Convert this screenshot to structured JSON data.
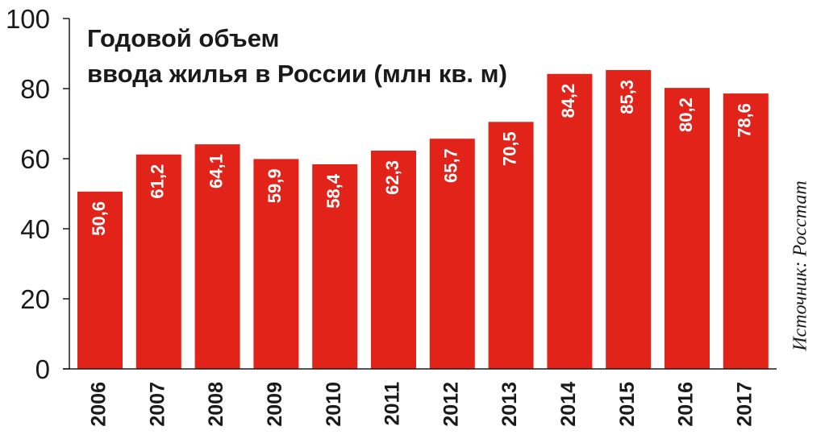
{
  "chart_data": {
    "type": "bar",
    "title": [
      "Годовой объем",
      "ввода жилья в России (млн кв. м)"
    ],
    "categories": [
      "2006",
      "2007",
      "2008",
      "2009",
      "2010",
      "2011",
      "2012",
      "2013",
      "2014",
      "2015",
      "2016",
      "2017"
    ],
    "values": [
      50.6,
      61.2,
      64.1,
      59.9,
      58.4,
      62.3,
      65.7,
      70.5,
      84.2,
      85.3,
      80.2,
      78.6
    ],
    "value_labels": [
      "50,6",
      "61,2",
      "64,1",
      "59,9",
      "58,4",
      "62,3",
      "65,7",
      "70,5",
      "84,2",
      "85,3",
      "80,2",
      "78,6"
    ],
    "yticks": [
      "0",
      "20",
      "40",
      "60",
      "80",
      "100"
    ],
    "ylim": [
      0,
      100
    ],
    "grid": false,
    "bar_color": "#e2231a",
    "source": "Источник: Росстат"
  }
}
